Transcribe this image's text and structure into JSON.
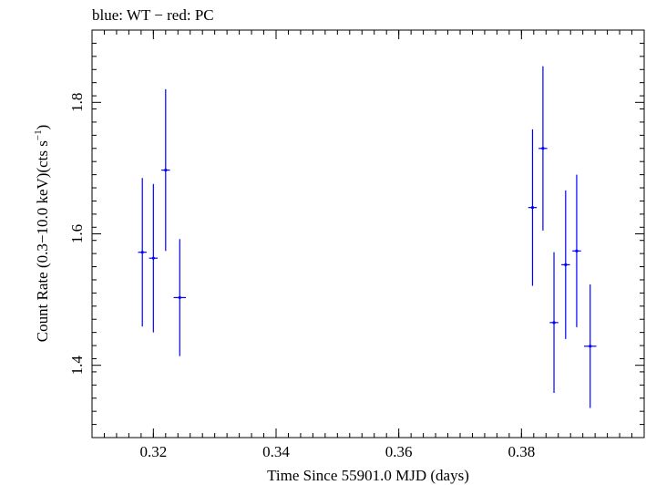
{
  "header": {
    "text": "blue: WT − red: PC"
  },
  "chart_data": {
    "type": "scatter",
    "title": "",
    "xlabel": "Time Since 55901.0 MJD (days)",
    "ylabel_main": "Count Rate (0.3−10.0 keV)(cts s",
    "ylabel_sup": "−1",
    "ylabel_tail": ")",
    "xlim": [
      0.31,
      0.4
    ],
    "ylim": [
      1.29,
      1.91
    ],
    "x_ticks": [
      0.32,
      0.34,
      0.36,
      0.38
    ],
    "x_tick_labels": [
      "0.32",
      "0.34",
      "0.36",
      "0.38"
    ],
    "x_minor_step": 0.002,
    "y_ticks": [
      1.4,
      1.6,
      1.8
    ],
    "y_tick_labels": [
      "1.4",
      "1.6",
      "1.8"
    ],
    "y_minor_step": 0.02,
    "grid": false,
    "series": [
      {
        "color": "#0000ff",
        "points": [
          {
            "x": 0.3182,
            "y": 1.572,
            "xerr": 0.0007,
            "yerr_low": 0.113,
            "yerr_high": 0.113
          },
          {
            "x": 0.32,
            "y": 1.563,
            "xerr": 0.0007,
            "yerr_low": 0.113,
            "yerr_high": 0.113
          },
          {
            "x": 0.322,
            "y": 1.697,
            "xerr": 0.0007,
            "yerr_low": 0.123,
            "yerr_high": 0.123
          },
          {
            "x": 0.3243,
            "y": 1.503,
            "xerr": 0.001,
            "yerr_low": 0.089,
            "yerr_high": 0.089
          },
          {
            "x": 0.3818,
            "y": 1.64,
            "xerr": 0.0007,
            "yerr_low": 0.119,
            "yerr_high": 0.119
          },
          {
            "x": 0.3835,
            "y": 1.73,
            "xerr": 0.0007,
            "yerr_low": 0.125,
            "yerr_high": 0.125
          },
          {
            "x": 0.3853,
            "y": 1.465,
            "xerr": 0.0007,
            "yerr_low": 0.107,
            "yerr_high": 0.107
          },
          {
            "x": 0.3872,
            "y": 1.553,
            "xerr": 0.0007,
            "yerr_low": 0.113,
            "yerr_high": 0.113
          },
          {
            "x": 0.389,
            "y": 1.574,
            "xerr": 0.0007,
            "yerr_low": 0.116,
            "yerr_high": 0.116
          },
          {
            "x": 0.3912,
            "y": 1.429,
            "xerr": 0.001,
            "yerr_low": 0.094,
            "yerr_high": 0.094
          }
        ]
      }
    ]
  }
}
